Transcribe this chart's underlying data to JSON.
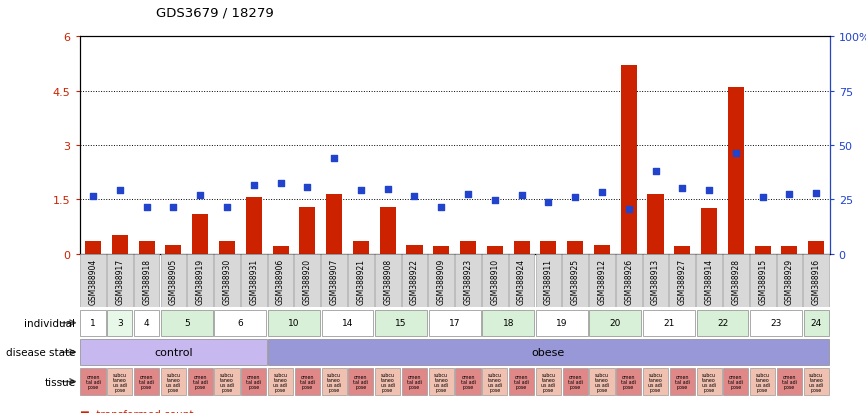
{
  "title": "GDS3679 / 18279",
  "samples": [
    "GSM388904",
    "GSM388917",
    "GSM388918",
    "GSM388905",
    "GSM388919",
    "GSM388930",
    "GSM388931",
    "GSM388906",
    "GSM388920",
    "GSM388907",
    "GSM388921",
    "GSM388908",
    "GSM388922",
    "GSM388909",
    "GSM388923",
    "GSM388910",
    "GSM388924",
    "GSM388911",
    "GSM388925",
    "GSM388912",
    "GSM388926",
    "GSM388913",
    "GSM388927",
    "GSM388914",
    "GSM388928",
    "GSM388915",
    "GSM388929",
    "GSM388916"
  ],
  "bar_values": [
    0.35,
    0.5,
    0.35,
    0.25,
    1.1,
    0.35,
    1.55,
    0.2,
    1.3,
    1.65,
    0.35,
    1.3,
    0.25,
    0.2,
    0.35,
    0.2,
    0.35,
    0.35,
    0.35,
    0.25,
    5.2,
    1.65,
    0.2,
    1.25,
    4.6,
    0.2,
    0.2,
    0.35
  ],
  "scatter_values_left_scale": [
    1.6,
    1.75,
    1.28,
    1.28,
    1.63,
    1.28,
    1.9,
    1.95,
    1.85,
    2.65,
    1.75,
    1.78,
    1.58,
    1.3,
    1.65,
    1.48,
    1.62,
    1.43,
    1.55,
    1.7,
    1.22,
    2.28,
    1.8,
    1.75,
    2.77,
    1.55,
    1.65,
    1.68
  ],
  "individual_groups": [
    {
      "label": "1",
      "start": 0,
      "end": 1,
      "color": "#ffffff"
    },
    {
      "label": "3",
      "start": 1,
      "end": 2,
      "color": "#e8f8e8"
    },
    {
      "label": "4",
      "start": 2,
      "end": 3,
      "color": "#ffffff"
    },
    {
      "label": "5",
      "start": 3,
      "end": 5,
      "color": "#d8f0d8"
    },
    {
      "label": "6",
      "start": 5,
      "end": 7,
      "color": "#ffffff"
    },
    {
      "label": "10",
      "start": 7,
      "end": 9,
      "color": "#d8f0d8"
    },
    {
      "label": "14",
      "start": 9,
      "end": 11,
      "color": "#ffffff"
    },
    {
      "label": "15",
      "start": 11,
      "end": 13,
      "color": "#d8f0d8"
    },
    {
      "label": "17",
      "start": 13,
      "end": 15,
      "color": "#ffffff"
    },
    {
      "label": "18",
      "start": 15,
      "end": 17,
      "color": "#d8f0d8"
    },
    {
      "label": "19",
      "start": 17,
      "end": 19,
      "color": "#ffffff"
    },
    {
      "label": "20",
      "start": 19,
      "end": 21,
      "color": "#d8f0d8"
    },
    {
      "label": "21",
      "start": 21,
      "end": 23,
      "color": "#ffffff"
    },
    {
      "label": "22",
      "start": 23,
      "end": 25,
      "color": "#d8f0d8"
    },
    {
      "label": "23",
      "start": 25,
      "end": 27,
      "color": "#ffffff"
    },
    {
      "label": "24",
      "start": 27,
      "end": 28,
      "color": "#d8f0d8"
    }
  ],
  "disease_groups": [
    {
      "label": "control",
      "start": 0,
      "end": 7
    },
    {
      "label": "obese",
      "start": 7,
      "end": 28
    }
  ],
  "disease_color_control": "#c8b8f0",
  "disease_color_obese": "#9898d8",
  "bar_color": "#cc2200",
  "scatter_color": "#2244cc",
  "ylim_left": [
    0,
    6
  ],
  "ylim_right": [
    0,
    100
  ],
  "yticks_left": [
    0,
    1.5,
    3.0,
    4.5,
    6.0
  ],
  "yticks_right": [
    0,
    25,
    50,
    75,
    100
  ],
  "ytick_labels_left": [
    "0",
    "1.5",
    "3",
    "4.5",
    "6"
  ],
  "ytick_labels_right": [
    "0",
    "25",
    "50",
    "75",
    "100%"
  ],
  "grid_values": [
    1.5,
    3.0,
    4.5
  ],
  "tissue_omental_color": "#e08888",
  "tissue_subcut_color": "#f0c0b0",
  "xtick_bg": "#d8d8d8"
}
